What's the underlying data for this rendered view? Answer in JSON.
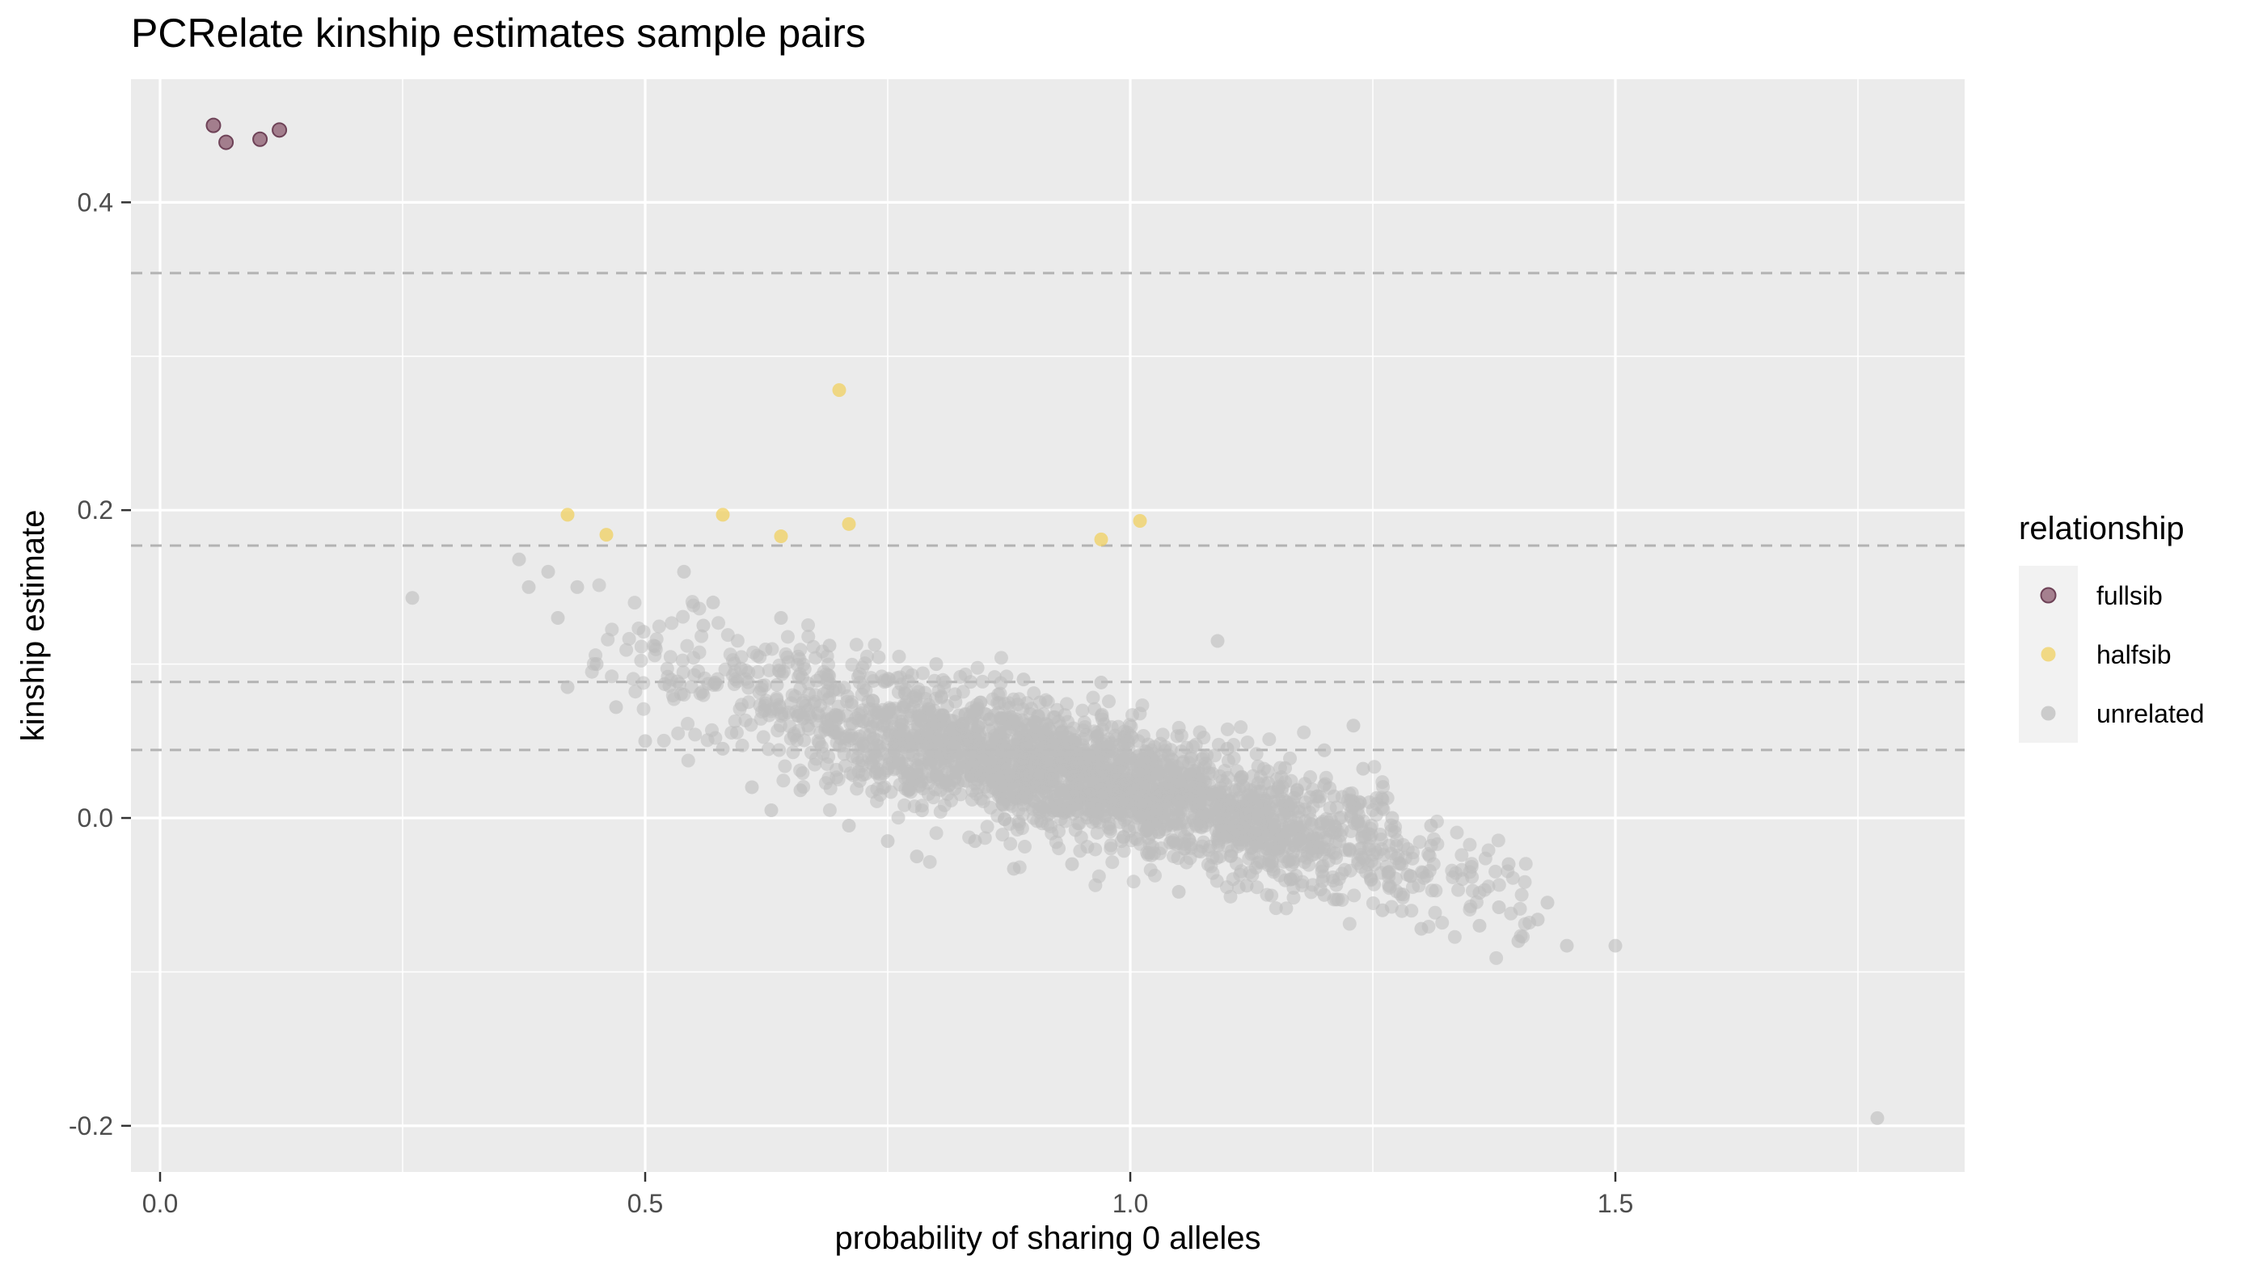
{
  "chart_data": {
    "type": "scatter",
    "title": "PCRelate kinship estimates sample pairs",
    "xlabel": "probability of sharing 0 alleles",
    "ylabel": "kinship estimate",
    "xlim": [
      -0.03,
      1.86
    ],
    "ylim": [
      -0.23,
      0.48
    ],
    "x_ticks": [
      0.0,
      0.5,
      1.0,
      1.5
    ],
    "x_tick_labels": [
      "0.0",
      "0.5",
      "1.0",
      "1.5"
    ],
    "y_ticks": [
      -0.2,
      0.0,
      0.2,
      0.4
    ],
    "y_tick_labels": [
      "-0.2",
      "0.0",
      "0.2",
      "0.4"
    ],
    "grid": true,
    "reference_lines": [
      0.354,
      0.177,
      0.0884,
      0.0442
    ],
    "legend": {
      "title": "relationship",
      "position": "right",
      "entries": [
        "fullsib",
        "halfsib",
        "unrelated"
      ]
    },
    "series": [
      {
        "name": "fullsib",
        "color": "#8b5a6e",
        "points": [
          [
            0.055,
            0.45
          ],
          [
            0.068,
            0.439
          ],
          [
            0.103,
            0.441
          ],
          [
            0.123,
            0.447
          ]
        ]
      },
      {
        "name": "halfsib",
        "color": "#f0d060",
        "points": [
          [
            0.42,
            0.197
          ],
          [
            0.46,
            0.184
          ],
          [
            0.58,
            0.197
          ],
          [
            0.64,
            0.183
          ],
          [
            0.7,
            0.278
          ],
          [
            0.71,
            0.191
          ],
          [
            0.97,
            0.181
          ],
          [
            1.01,
            0.193
          ]
        ]
      },
      {
        "name": "unrelated",
        "color": "#bdbdbd",
        "points": [
          [
            0.26,
            0.143
          ],
          [
            0.37,
            0.168
          ],
          [
            0.38,
            0.15
          ],
          [
            0.4,
            0.16
          ],
          [
            0.41,
            0.13
          ],
          [
            0.42,
            0.085
          ],
          [
            0.43,
            0.15
          ],
          [
            0.45,
            0.1
          ],
          [
            0.47,
            0.072
          ],
          [
            0.5,
            0.05
          ],
          [
            0.52,
            0.087
          ],
          [
            0.58,
            0.045
          ],
          [
            0.61,
            0.02
          ],
          [
            0.63,
            0.005
          ],
          [
            0.66,
            0.018
          ],
          [
            0.71,
            -0.005
          ],
          [
            0.75,
            -0.015
          ],
          [
            0.78,
            -0.025
          ],
          [
            0.84,
            -0.015
          ],
          [
            0.88,
            -0.033
          ],
          [
            0.94,
            -0.03
          ],
          [
            1.05,
            -0.048
          ],
          [
            1.12,
            -0.044
          ],
          [
            1.2,
            -0.05
          ],
          [
            1.26,
            -0.06
          ],
          [
            1.3,
            -0.072
          ],
          [
            1.36,
            -0.07
          ],
          [
            1.38,
            -0.058
          ],
          [
            1.4,
            -0.08
          ],
          [
            1.42,
            -0.066
          ],
          [
            1.45,
            -0.083
          ],
          [
            1.5,
            -0.083
          ],
          [
            1.43,
            -0.055
          ],
          [
            1.39,
            -0.03
          ],
          [
            1.31,
            -0.005
          ],
          [
            1.27,
            0.0
          ],
          [
            1.26,
            0.012
          ],
          [
            1.24,
            0.032
          ],
          [
            1.23,
            0.06
          ],
          [
            1.2,
            0.044
          ],
          [
            1.1,
            0.045
          ],
          [
            1.09,
            0.115
          ],
          [
            0.97,
            0.088
          ],
          [
            0.89,
            0.09
          ],
          [
            0.8,
            0.1
          ],
          [
            0.69,
            0.112
          ],
          [
            0.57,
            0.14
          ],
          [
            0.54,
            0.16
          ],
          [
            0.56,
            0.125
          ],
          [
            0.64,
            0.13
          ],
          [
            1.77,
            -0.195
          ]
        ],
        "band": {
          "description": "dense cloud of pairs along a negative trend",
          "x_range": [
            0.44,
            1.42
          ],
          "center_line": [
            [
              0.44,
              0.12
            ],
            [
              0.7,
              0.06
            ],
            [
              1.0,
              0.02
            ],
            [
              1.2,
              -0.015
            ],
            [
              1.42,
              -0.045
            ]
          ],
          "spread": 0.045
        }
      }
    ]
  }
}
